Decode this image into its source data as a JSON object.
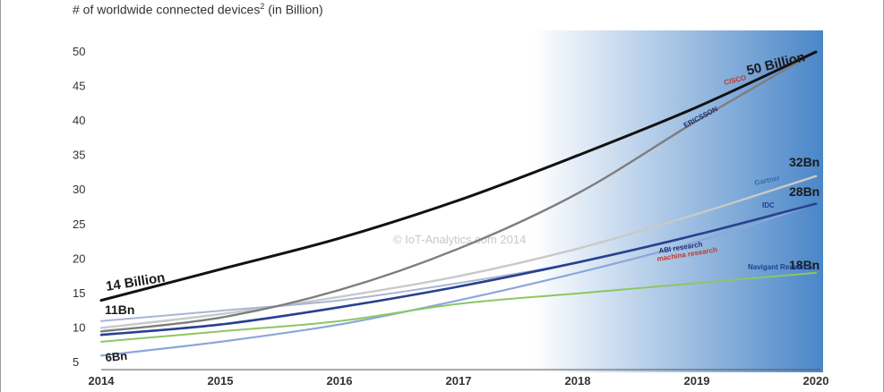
{
  "chart_data": {
    "type": "line",
    "title": "# of worldwide connected devices",
    "title_superscript": "2",
    "title_suffix": " (in Billion)",
    "xlabel": "",
    "ylabel": "",
    "x": [
      2014,
      2015,
      2016,
      2017,
      2018,
      2019,
      2020
    ],
    "x_tick_labels": [
      "2014",
      "2015",
      "2016",
      "2017",
      "2018",
      "2019",
      "2020"
    ],
    "y_ticks": [
      5,
      10,
      15,
      20,
      25,
      30,
      35,
      40,
      45,
      50
    ],
    "y_tick_labels": [
      "5",
      "10",
      "15",
      "20",
      "25",
      "30",
      "35",
      "40",
      "45",
      "50"
    ],
    "xlim": [
      2014,
      2020
    ],
    "ylim": [
      5,
      50
    ],
    "grid": false,
    "watermark": "© IoT-Analytics.com 2014",
    "series": [
      {
        "source": "CISCO",
        "color": "#111111",
        "values": [
          14,
          18.5,
          23,
          28.5,
          35,
          42,
          50
        ],
        "start_label": "14 Billion",
        "end_label": "50 Billion"
      },
      {
        "source": "ERICSSON",
        "color": "#7d7d7d",
        "values": [
          9.5,
          11.5,
          15.5,
          21.5,
          29.5,
          40,
          50
        ]
      },
      {
        "source": "Gartner",
        "color": "#c9c9c9",
        "values": [
          10,
          12,
          14.5,
          17.5,
          21.5,
          26.5,
          32
        ],
        "end_label": "32Bn"
      },
      {
        "source": "IDC",
        "color": "#aab4d6",
        "values": [
          11,
          12.5,
          14,
          16.5,
          19.5,
          23.5,
          28
        ],
        "start_label": "11Bn",
        "end_label": "28Bn"
      },
      {
        "source": "ABI research",
        "color": "#27418f",
        "values": [
          9,
          10.5,
          13,
          16,
          19.5,
          23.5,
          28
        ]
      },
      {
        "source": "machina research",
        "color": "#8aa7da",
        "values": [
          6,
          8,
          10.5,
          14,
          18,
          22.5,
          28
        ],
        "start_label": "6Bn"
      },
      {
        "source": "Navigant Research",
        "color": "#8cc763",
        "values": [
          8,
          9.5,
          11,
          13.5,
          15,
          16.5,
          18
        ],
        "end_label": "18Bn"
      }
    ],
    "colors": {
      "gradient_start": "#ffffff",
      "gradient_end": "#4a86c8",
      "axis": "#555555"
    }
  }
}
